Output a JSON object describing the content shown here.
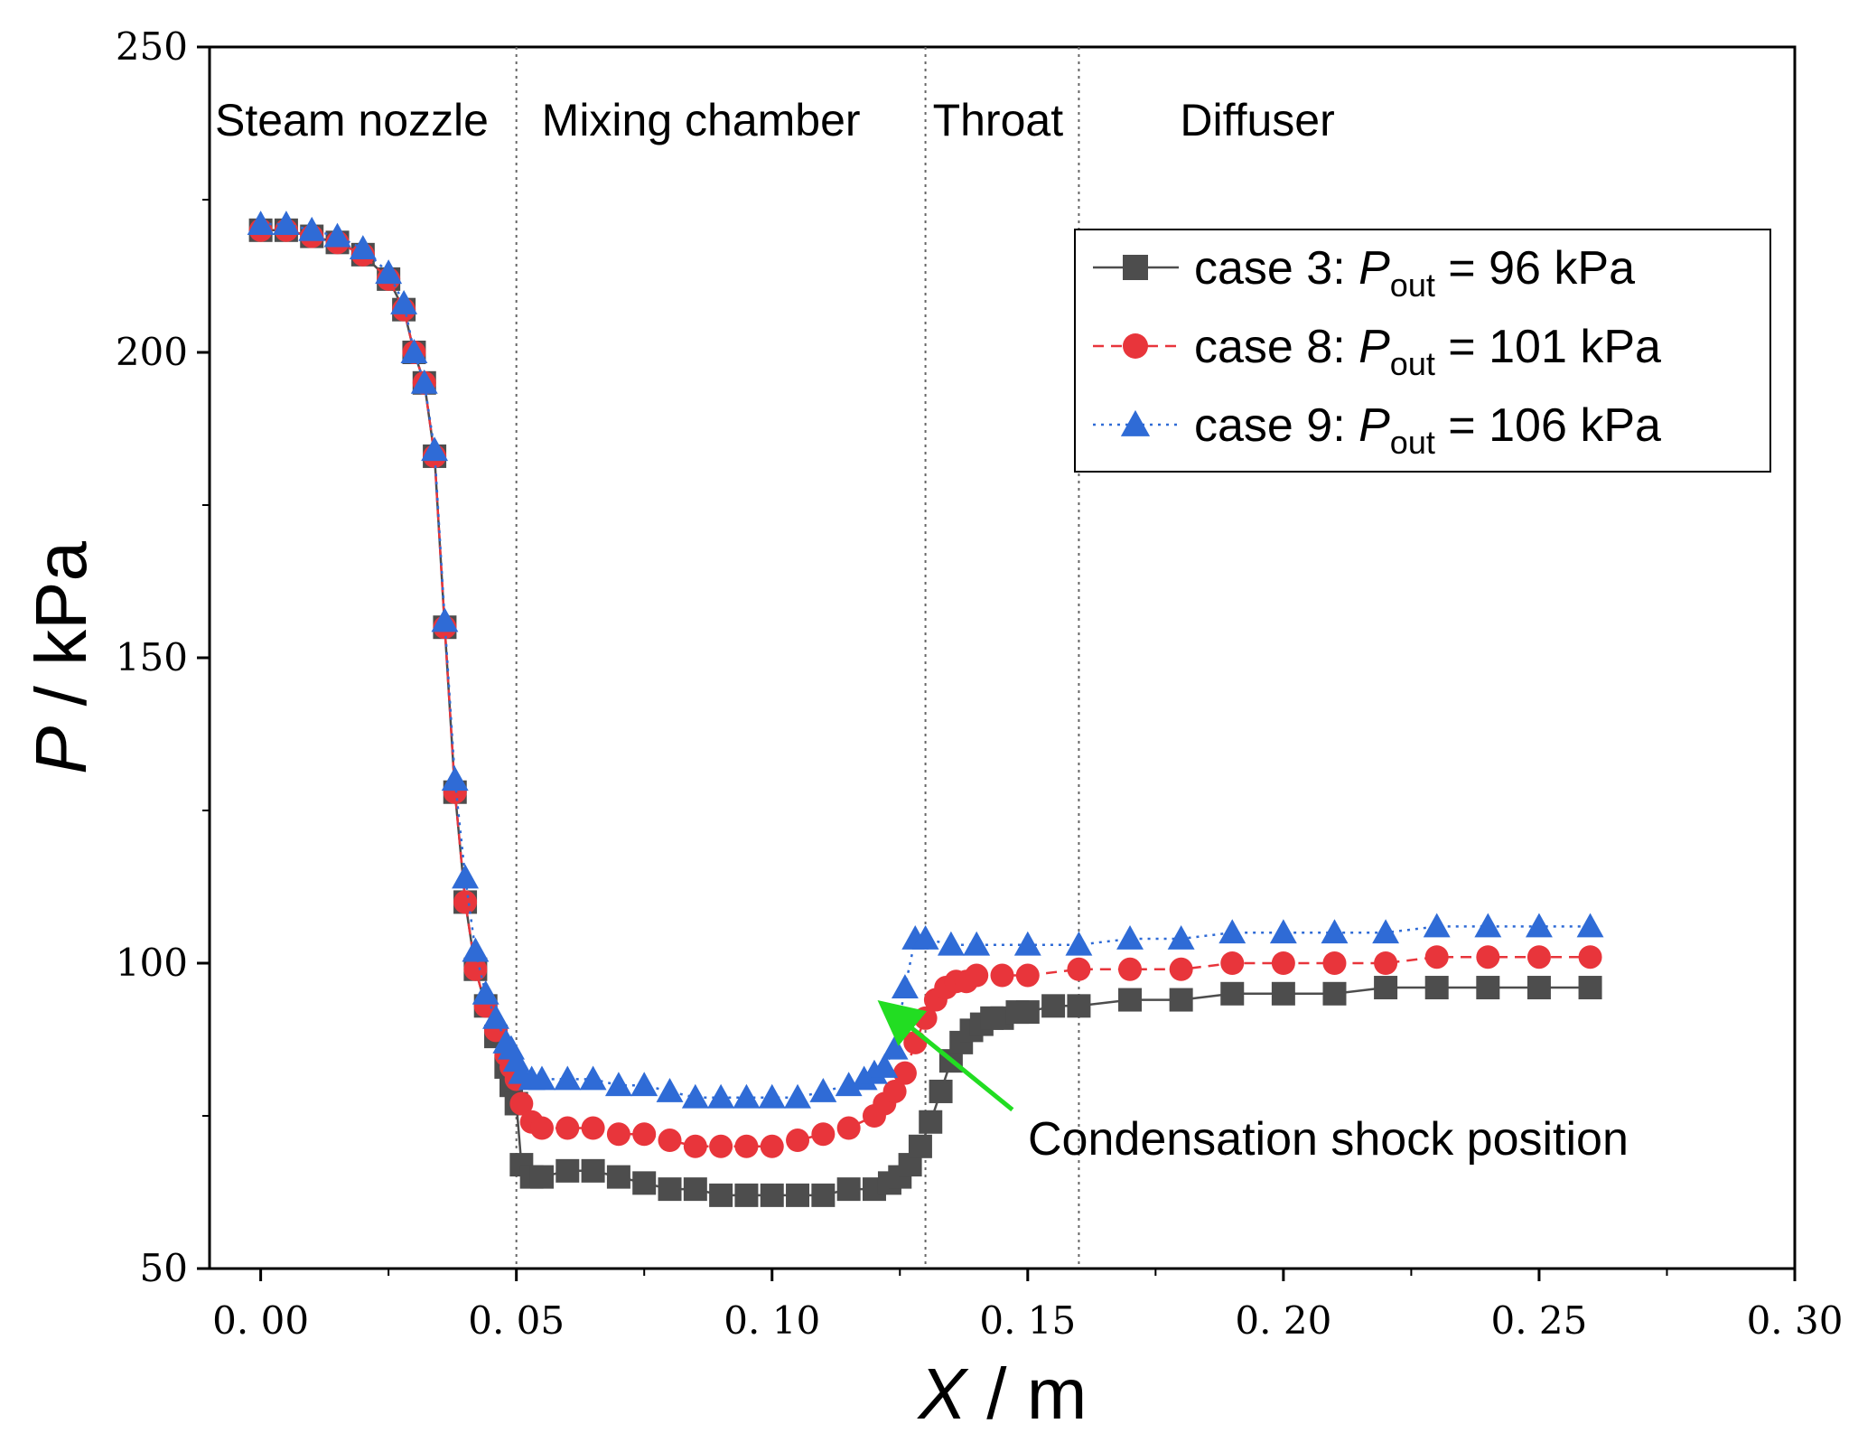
{
  "chart_data": {
    "type": "line",
    "title": "",
    "xlabel": {
      "var": "X",
      "unit": " / m"
    },
    "ylabel": {
      "var": "P",
      "unit": " / kPa"
    },
    "xlim": [
      -0.01,
      0.3
    ],
    "ylim": [
      50,
      250
    ],
    "xticks": [
      0.0,
      0.05,
      0.1,
      0.15,
      0.2,
      0.25,
      0.3
    ],
    "xtick_labels": [
      "0. 00",
      "0. 05",
      "0. 10",
      "0. 15",
      "0. 20",
      "0. 25",
      "0. 30"
    ],
    "yticks": [
      50,
      100,
      150,
      200,
      250
    ],
    "ytick_labels": [
      "50",
      "100",
      "150",
      "200",
      "250"
    ],
    "regions": [
      {
        "label": "Steam nozzle",
        "x_start": -0.01,
        "x_end": 0.05
      },
      {
        "label": "Mixing chamber",
        "x_start": 0.05,
        "x_end": 0.13
      },
      {
        "label": "Throat",
        "x_start": 0.13,
        "x_end": 0.16
      },
      {
        "label": "Diffuser",
        "x_start": 0.16,
        "x_end": 0.3
      }
    ],
    "region_boundaries": [
      0.05,
      0.13,
      0.16
    ],
    "legend": {
      "placement": "top-right"
    },
    "series": [
      {
        "name": "case 3",
        "legend_prefix": "case 3: ",
        "legend_var": "P",
        "legend_sub": "out",
        "legend_value": " = 96 kPa",
        "color": "#4d4d4d",
        "marker": "square",
        "line_style": "solid",
        "x": [
          0.0,
          0.005,
          0.01,
          0.015,
          0.02,
          0.025,
          0.028,
          0.03,
          0.032,
          0.034,
          0.036,
          0.038,
          0.04,
          0.042,
          0.044,
          0.046,
          0.048,
          0.049,
          0.05,
          0.051,
          0.053,
          0.055,
          0.06,
          0.065,
          0.07,
          0.075,
          0.08,
          0.085,
          0.09,
          0.095,
          0.1,
          0.105,
          0.11,
          0.115,
          0.12,
          0.123,
          0.125,
          0.127,
          0.129,
          0.131,
          0.133,
          0.135,
          0.137,
          0.139,
          0.141,
          0.143,
          0.145,
          0.148,
          0.15,
          0.155,
          0.16,
          0.17,
          0.18,
          0.19,
          0.2,
          0.21,
          0.22,
          0.23,
          0.24,
          0.25,
          0.26
        ],
        "y": [
          220,
          220,
          219,
          218,
          216,
          212,
          207,
          200,
          195,
          183,
          155,
          128,
          110,
          99,
          93,
          88,
          83,
          80,
          77,
          67,
          65,
          65,
          66,
          66,
          65,
          64,
          63,
          63,
          62,
          62,
          62,
          62,
          62,
          63,
          63,
          64,
          65,
          67,
          70,
          74,
          79,
          84,
          87,
          89,
          90,
          91,
          91,
          92,
          92,
          93,
          93,
          94,
          94,
          95,
          95,
          95,
          96,
          96,
          96,
          96,
          96
        ]
      },
      {
        "name": "case 8",
        "legend_prefix": "case 8: ",
        "legend_var": "P",
        "legend_sub": "out",
        "legend_value": " = 101 kPa",
        "color": "#e8353b",
        "marker": "circle",
        "line_style": "dashed",
        "x": [
          0.0,
          0.005,
          0.01,
          0.015,
          0.02,
          0.025,
          0.028,
          0.03,
          0.032,
          0.034,
          0.036,
          0.038,
          0.04,
          0.042,
          0.044,
          0.046,
          0.048,
          0.049,
          0.05,
          0.051,
          0.053,
          0.055,
          0.06,
          0.065,
          0.07,
          0.075,
          0.08,
          0.085,
          0.09,
          0.095,
          0.1,
          0.105,
          0.11,
          0.115,
          0.12,
          0.122,
          0.124,
          0.126,
          0.128,
          0.13,
          0.132,
          0.134,
          0.136,
          0.138,
          0.14,
          0.145,
          0.15,
          0.16,
          0.17,
          0.18,
          0.19,
          0.2,
          0.21,
          0.22,
          0.23,
          0.24,
          0.25,
          0.26
        ],
        "y": [
          220,
          220,
          219,
          218,
          216,
          212,
          207,
          200,
          195,
          183,
          155,
          128,
          110,
          99,
          93,
          89,
          85,
          83,
          81,
          77,
          74,
          73,
          73,
          73,
          72,
          72,
          71,
          70,
          70,
          70,
          70,
          71,
          72,
          73,
          75,
          77,
          79,
          82,
          87,
          91,
          94,
          96,
          97,
          97,
          98,
          98,
          98,
          99,
          99,
          99,
          100,
          100,
          100,
          100,
          101,
          101,
          101,
          101
        ]
      },
      {
        "name": "case 9",
        "legend_prefix": "case 9: ",
        "legend_var": "P",
        "legend_sub": "out",
        "legend_value": " = 106 kPa",
        "color": "#2f6bd6",
        "marker": "triangle",
        "line_style": "dotted",
        "x": [
          0.0,
          0.005,
          0.01,
          0.015,
          0.02,
          0.025,
          0.028,
          0.03,
          0.032,
          0.034,
          0.036,
          0.038,
          0.04,
          0.042,
          0.044,
          0.046,
          0.048,
          0.049,
          0.05,
          0.051,
          0.053,
          0.055,
          0.06,
          0.065,
          0.07,
          0.075,
          0.08,
          0.085,
          0.09,
          0.095,
          0.1,
          0.105,
          0.11,
          0.115,
          0.118,
          0.12,
          0.122,
          0.124,
          0.126,
          0.128,
          0.13,
          0.135,
          0.14,
          0.15,
          0.16,
          0.17,
          0.18,
          0.19,
          0.2,
          0.21,
          0.22,
          0.23,
          0.24,
          0.25,
          0.26
        ],
        "y": [
          221,
          221,
          220,
          219,
          217,
          213,
          208,
          200,
          195,
          184,
          156,
          130,
          114,
          102,
          95,
          91,
          87,
          86,
          84,
          82,
          81,
          81,
          81,
          81,
          80,
          80,
          79,
          78,
          78,
          78,
          78,
          78,
          79,
          80,
          81,
          82,
          83,
          86,
          96,
          104,
          104,
          103,
          103,
          103,
          103,
          104,
          104,
          105,
          105,
          105,
          105,
          106,
          106,
          106,
          106
        ]
      }
    ],
    "annotations": [
      {
        "text": "Condensation shock position",
        "color": "#22dd22",
        "arrow_from": [
          0.147,
          76
        ],
        "arrow_to": [
          0.122,
          93
        ]
      }
    ]
  }
}
